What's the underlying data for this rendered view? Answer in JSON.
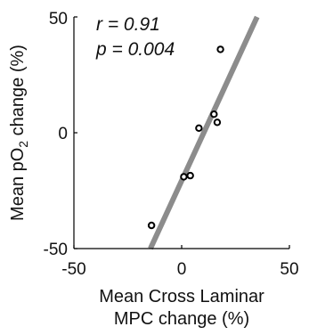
{
  "chart_data": {
    "type": "scatter",
    "xlabel_lines": [
      "Mean Cross Laminar",
      "MPC change (%)"
    ],
    "ylabel_parts": {
      "prefix": "Mean pO",
      "subscript": "2",
      "suffix": " change (%)"
    },
    "xlim": [
      -50,
      50
    ],
    "ylim": [
      -50,
      50
    ],
    "xticks": [
      "-50",
      "0",
      "50"
    ],
    "yticks": [
      "50",
      "0",
      "-50"
    ],
    "annotations": [
      "r = 0.91",
      "p = 0.004"
    ],
    "points": [
      {
        "x": 18,
        "y": 36
      },
      {
        "x": 15,
        "y": 8
      },
      {
        "x": 16.5,
        "y": 4.5
      },
      {
        "x": 8,
        "y": 2
      },
      {
        "x": 1,
        "y": -19
      },
      {
        "x": 4,
        "y": -18.5
      },
      {
        "x": -14,
        "y": -40
      }
    ],
    "fit_line": {
      "x": [
        -14.5,
        35
      ],
      "y": [
        -50,
        50
      ]
    },
    "colors": {
      "points": "#000000",
      "fit": "#8c8c8c",
      "axes": "#000000"
    }
  }
}
